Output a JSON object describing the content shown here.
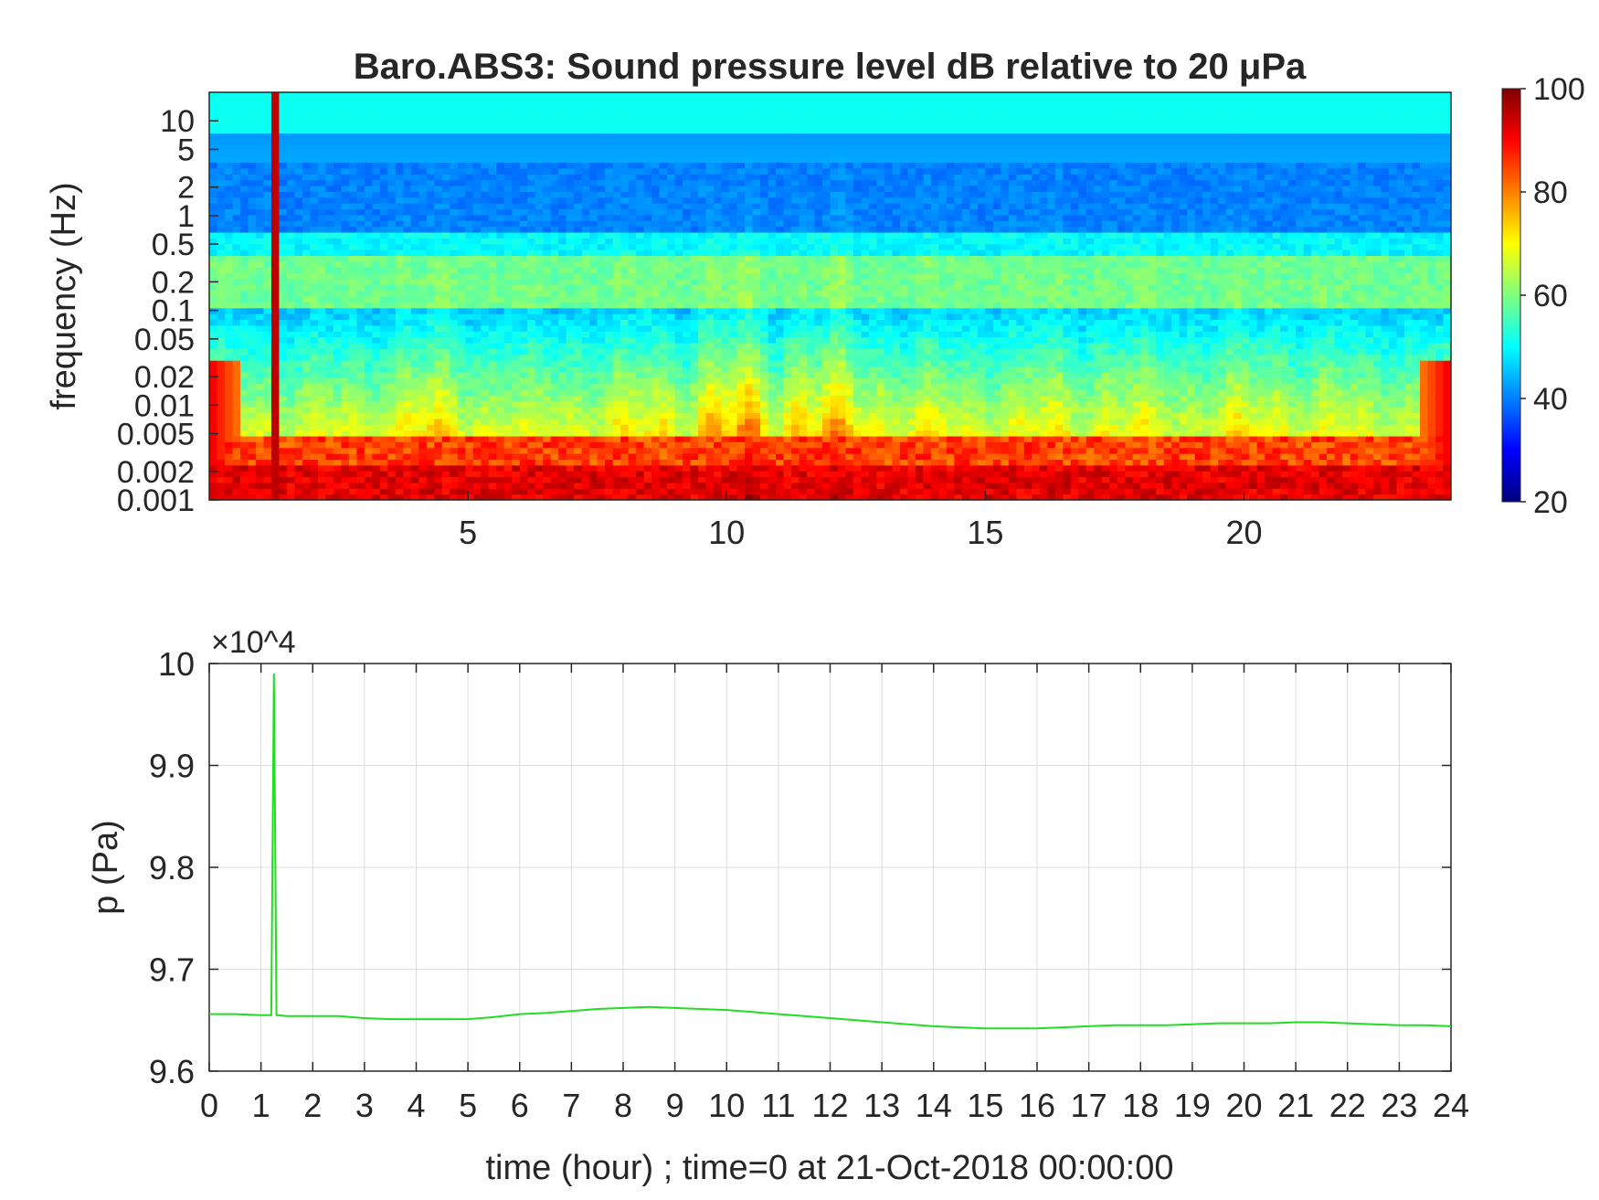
{
  "chart_data": [
    {
      "type": "heatmap",
      "title": "Baro.ABS3: Sound pressure level dB relative to 20 μPa",
      "xlabel": "",
      "ylabel": "frequency (Hz)",
      "xlim": [
        0,
        24
      ],
      "ylim": [
        0.001,
        20
      ],
      "y_scale": "log",
      "x_ticks": [
        5,
        10,
        15,
        20
      ],
      "y_ticks": [
        10,
        5,
        2,
        1,
        0.5,
        0.2,
        0.1,
        0.05,
        0.02,
        0.01,
        0.005,
        0.002,
        0.001
      ],
      "colorbar": {
        "colormap": "jet",
        "range": [
          20,
          100
        ],
        "ticks": [
          100,
          80,
          60,
          40,
          20
        ]
      },
      "notable_features": [
        {
          "time_hour": 1.25,
          "description": "vertical spike across all frequencies"
        },
        {
          "time_hour": 10.5,
          "description": "broadband energy bursts, hours 8-14"
        }
      ]
    },
    {
      "type": "line",
      "title": "",
      "xlabel": "time (hour) ; time=0 at 21-Oct-2018 00:00:00",
      "ylabel": "p (Pa)",
      "y_multiplier": "×10^4",
      "xlim": [
        0,
        24
      ],
      "ylim": [
        9.6,
        10
      ],
      "grid": true,
      "x_ticks": [
        0,
        1,
        2,
        3,
        4,
        5,
        6,
        7,
        8,
        9,
        10,
        11,
        12,
        13,
        14,
        15,
        16,
        17,
        18,
        19,
        20,
        21,
        22,
        23,
        24
      ],
      "y_ticks": [
        10,
        9.9,
        9.8,
        9.7,
        9.6
      ],
      "series": [
        {
          "color": "#22dd22",
          "x": [
            0,
            0.5,
            1,
            1.2,
            1.25,
            1.3,
            1.5,
            2,
            2.5,
            3,
            3.5,
            4,
            4.5,
            5,
            5.5,
            6,
            6.5,
            7,
            7.5,
            8,
            8.5,
            9,
            9.5,
            10,
            10.5,
            11,
            11.5,
            12,
            12.5,
            13,
            13.5,
            14,
            14.5,
            15,
            15.5,
            16,
            16.5,
            17,
            17.5,
            18,
            18.5,
            19,
            19.5,
            20,
            20.5,
            21,
            21.5,
            22,
            22.5,
            23,
            23.5,
            24
          ],
          "values": [
            9.656,
            9.656,
            9.655,
            9.655,
            9.99,
            9.655,
            9.654,
            9.654,
            9.654,
            9.652,
            9.651,
            9.651,
            9.651,
            9.651,
            9.653,
            9.656,
            9.657,
            9.659,
            9.661,
            9.662,
            9.663,
            9.662,
            9.661,
            9.66,
            9.658,
            9.656,
            9.654,
            9.652,
            9.65,
            9.648,
            9.646,
            9.644,
            9.643,
            9.642,
            9.642,
            9.642,
            9.643,
            9.644,
            9.645,
            9.645,
            9.645,
            9.646,
            9.647,
            9.647,
            9.647,
            9.648,
            9.648,
            9.647,
            9.646,
            9.645,
            9.645,
            9.644
          ]
        }
      ]
    }
  ]
}
